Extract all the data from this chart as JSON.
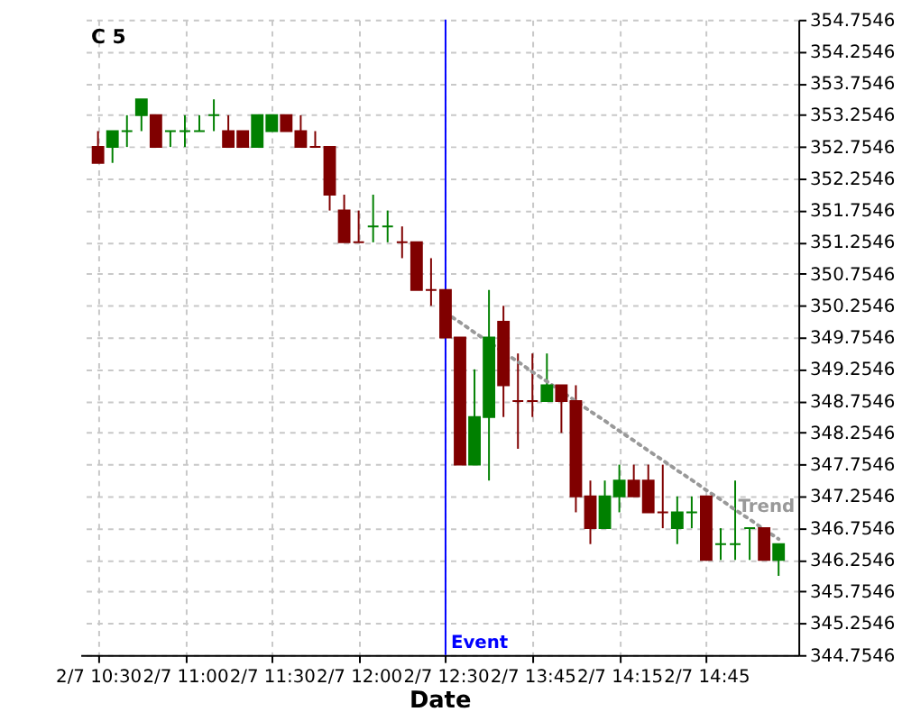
{
  "chart_data": {
    "type": "candlestick",
    "title": "C 5",
    "xlabel": "Date",
    "categories": [
      "2/7 10:30",
      null,
      null,
      null,
      null,
      null,
      "2/7 11:00",
      null,
      null,
      null,
      null,
      null,
      "2/7 11:30",
      null,
      null,
      null,
      null,
      null,
      "2/7 12:00",
      null,
      null,
      null,
      null,
      null,
      "2/7 12:30",
      null,
      null,
      null,
      null,
      null,
      "2/7 13:45",
      null,
      null,
      null,
      null,
      null,
      "2/7 14:15",
      null,
      null,
      null,
      null,
      null,
      "2/7 14:45",
      null,
      null,
      null,
      null,
      null
    ],
    "ohlc": [
      [
        352.75,
        353.0,
        352.5,
        352.5
      ],
      [
        352.75,
        353.0,
        352.5,
        353.0
      ],
      [
        353.0,
        353.25,
        352.75,
        353.0
      ],
      [
        353.25,
        353.5,
        353.0,
        353.5
      ],
      [
        353.25,
        353.25,
        352.75,
        352.75
      ],
      [
        353.0,
        353.0,
        352.75,
        353.0
      ],
      [
        353.0,
        353.25,
        352.75,
        353.0
      ],
      [
        353.0,
        353.25,
        353.0,
        353.0
      ],
      [
        353.25,
        353.5,
        353.0,
        353.25
      ],
      [
        353.0,
        353.25,
        352.75,
        352.75
      ],
      [
        353.0,
        353.0,
        352.75,
        352.75
      ],
      [
        352.75,
        353.25,
        352.75,
        353.25
      ],
      [
        353.0,
        353.25,
        353.0,
        353.25
      ],
      [
        353.25,
        353.25,
        353.0,
        353.0
      ],
      [
        353.0,
        353.25,
        352.75,
        352.75
      ],
      [
        352.75,
        353.0,
        352.75,
        352.75
      ],
      [
        352.75,
        352.75,
        351.75,
        352.0
      ],
      [
        351.75,
        352.0,
        351.25,
        351.25
      ],
      [
        351.25,
        351.75,
        351.25,
        351.25
      ],
      [
        351.5,
        352.0,
        351.25,
        351.5
      ],
      [
        351.5,
        351.75,
        351.25,
        351.5
      ],
      [
        351.25,
        351.5,
        351.0,
        351.25
      ],
      [
        351.25,
        351.25,
        350.5,
        350.5
      ],
      [
        350.5,
        351.0,
        350.25,
        350.5
      ],
      [
        350.5,
        350.5,
        349.75,
        349.75
      ],
      [
        349.75,
        349.75,
        347.75,
        347.75
      ],
      [
        347.75,
        349.25,
        347.75,
        348.5
      ],
      [
        348.5,
        350.5,
        347.5,
        349.75
      ],
      [
        350.0,
        350.25,
        348.5,
        349.0
      ],
      [
        348.75,
        349.5,
        348.0,
        348.75
      ],
      [
        348.75,
        349.5,
        348.5,
        348.75
      ],
      [
        348.75,
        349.5,
        348.75,
        349.0
      ],
      [
        349.0,
        349.0,
        348.25,
        348.75
      ],
      [
        348.75,
        349.0,
        347.0,
        347.25
      ],
      [
        347.25,
        347.5,
        346.5,
        346.75
      ],
      [
        346.75,
        347.5,
        346.75,
        347.25
      ],
      [
        347.25,
        347.75,
        347.0,
        347.5
      ],
      [
        347.5,
        347.75,
        347.25,
        347.25
      ],
      [
        347.5,
        347.75,
        347.0,
        347.0
      ],
      [
        347.0,
        347.75,
        346.75,
        347.0
      ],
      [
        346.75,
        347.25,
        346.5,
        347.0
      ],
      [
        347.0,
        347.25,
        346.75,
        347.0
      ],
      [
        347.25,
        347.25,
        346.25,
        346.25
      ],
      [
        346.5,
        346.75,
        346.25,
        346.5
      ],
      [
        346.5,
        347.5,
        346.25,
        346.5
      ],
      [
        346.75,
        346.75,
        346.25,
        346.75
      ],
      [
        346.75,
        346.75,
        346.25,
        346.25
      ],
      [
        346.25,
        346.5,
        346.0,
        346.5
      ]
    ],
    "colors": [
      "#800000",
      "#008000",
      "#008000",
      "#008000",
      "#800000",
      "#008000",
      "#008000",
      "#008000",
      "#008000",
      "#800000",
      "#800000",
      "#008000",
      "#008000",
      "#800000",
      "#800000",
      "#800000",
      "#800000",
      "#800000",
      "#800000",
      "#008000",
      "#008000",
      "#800000",
      "#800000",
      "#800000",
      "#800000",
      "#800000",
      "#008000",
      "#008000",
      "#800000",
      "#800000",
      "#800000",
      "#008000",
      "#800000",
      "#800000",
      "#800000",
      "#008000",
      "#008000",
      "#800000",
      "#800000",
      "#800000",
      "#008000",
      "#008000",
      "#800000",
      "#008000",
      "#008000",
      "#008000",
      "#800000",
      "#008000"
    ],
    "series": [
      {
        "type": "line",
        "name": "Trend",
        "color": "#999999",
        "line_style": "dotted",
        "values": [
          null,
          null,
          null,
          null,
          null,
          null,
          null,
          null,
          null,
          null,
          null,
          null,
          null,
          null,
          null,
          null,
          null,
          null,
          null,
          null,
          null,
          null,
          null,
          null,
          350.14,
          349.99,
          349.83,
          349.68,
          349.52,
          349.37,
          349.21,
          349.06,
          348.9,
          348.75,
          348.59,
          348.44,
          348.28,
          348.13,
          347.97,
          347.82,
          347.66,
          347.51,
          347.35,
          347.2,
          347.04,
          346.89,
          346.73,
          346.58
        ]
      }
    ],
    "ref_lines": [
      {
        "axis": "x",
        "value": "2/7 12:30",
        "label": "Event",
        "color": "#0000ff"
      }
    ],
    "ylim": [
      344.7546,
      354.7546
    ],
    "yticks": [
      344.7546,
      345.2546,
      345.7546,
      346.2546,
      346.7546,
      347.2546,
      347.7546,
      348.2546,
      348.7546,
      349.2546,
      349.7546,
      350.2546,
      350.7546,
      351.2546,
      351.7546,
      352.2546,
      352.7546,
      353.2546,
      353.7546,
      354.2546,
      354.7546
    ],
    "grid": true
  }
}
